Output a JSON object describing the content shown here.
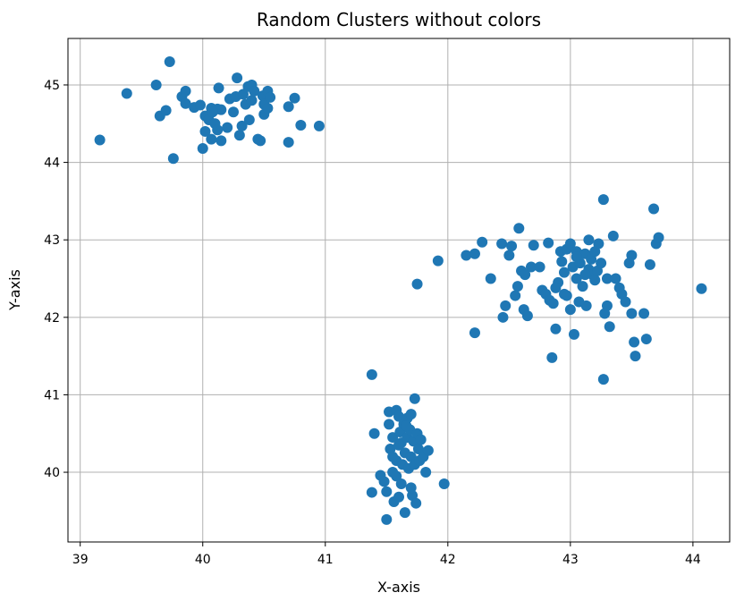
{
  "chart_data": {
    "type": "scatter",
    "title": "Random Clusters without colors",
    "xlabel": "X-axis",
    "ylabel": "Y-axis",
    "xlim": [
      38.9,
      44.3
    ],
    "ylim": [
      39.1,
      45.6
    ],
    "xticks": [
      39,
      40,
      41,
      42,
      43,
      44
    ],
    "yticks": [
      40,
      41,
      42,
      43,
      44,
      45
    ],
    "grid": true,
    "marker_color": "#1f77b4",
    "series": [
      {
        "points": [
          [
            39.16,
            44.29
          ],
          [
            39.38,
            44.89
          ],
          [
            39.62,
            45.0
          ],
          [
            39.65,
            44.6
          ],
          [
            39.7,
            44.67
          ],
          [
            39.73,
            45.3
          ],
          [
            39.76,
            44.05
          ],
          [
            39.83,
            44.85
          ],
          [
            39.86,
            44.92
          ],
          [
            39.86,
            44.76
          ],
          [
            39.93,
            44.71
          ],
          [
            39.98,
            44.74
          ],
          [
            40.02,
            44.6
          ],
          [
            40.02,
            44.4
          ],
          [
            40.0,
            44.18
          ],
          [
            40.05,
            44.55
          ],
          [
            40.07,
            44.7
          ],
          [
            40.07,
            44.3
          ],
          [
            40.1,
            44.5
          ],
          [
            40.12,
            44.69
          ],
          [
            40.13,
            44.96
          ],
          [
            40.15,
            44.68
          ],
          [
            40.15,
            44.28
          ],
          [
            40.2,
            44.45
          ],
          [
            40.22,
            44.82
          ],
          [
            40.27,
            44.85
          ],
          [
            40.28,
            45.09
          ],
          [
            40.3,
            44.35
          ],
          [
            40.32,
            44.47
          ],
          [
            40.33,
            44.88
          ],
          [
            40.35,
            44.75
          ],
          [
            40.37,
            44.98
          ],
          [
            40.4,
            44.8
          ],
          [
            40.4,
            45.0
          ],
          [
            40.42,
            44.92
          ],
          [
            40.45,
            44.3
          ],
          [
            40.47,
            44.28
          ],
          [
            40.49,
            44.86
          ],
          [
            40.5,
            44.62
          ],
          [
            40.5,
            44.75
          ],
          [
            40.53,
            44.92
          ],
          [
            40.55,
            44.84
          ],
          [
            40.53,
            44.7
          ],
          [
            40.7,
            44.72
          ],
          [
            40.7,
            44.26
          ],
          [
            40.75,
            44.83
          ],
          [
            40.8,
            44.48
          ],
          [
            40.95,
            44.47
          ],
          [
            40.08,
            44.65
          ],
          [
            40.12,
            44.42
          ],
          [
            40.25,
            44.65
          ],
          [
            40.38,
            44.55
          ],
          [
            41.38,
            41.26
          ],
          [
            41.4,
            40.5
          ],
          [
            41.38,
            39.74
          ],
          [
            41.45,
            39.96
          ],
          [
            41.48,
            39.88
          ],
          [
            41.5,
            39.39
          ],
          [
            41.5,
            39.75
          ],
          [
            41.52,
            40.62
          ],
          [
            41.52,
            40.78
          ],
          [
            41.53,
            40.3
          ],
          [
            41.55,
            40.0
          ],
          [
            41.55,
            40.45
          ],
          [
            41.56,
            39.62
          ],
          [
            41.58,
            40.8
          ],
          [
            41.58,
            40.15
          ],
          [
            41.6,
            40.72
          ],
          [
            41.6,
            39.68
          ],
          [
            41.61,
            40.52
          ],
          [
            41.62,
            40.38
          ],
          [
            41.62,
            39.85
          ],
          [
            41.63,
            40.1
          ],
          [
            41.64,
            40.62
          ],
          [
            41.65,
            40.25
          ],
          [
            41.65,
            39.48
          ],
          [
            41.67,
            40.7
          ],
          [
            41.67,
            40.45
          ],
          [
            41.68,
            40.05
          ],
          [
            41.69,
            40.55
          ],
          [
            41.7,
            40.75
          ],
          [
            41.7,
            40.2
          ],
          [
            41.71,
            39.7
          ],
          [
            41.72,
            40.4
          ],
          [
            41.73,
            40.95
          ],
          [
            41.73,
            40.1
          ],
          [
            41.74,
            39.6
          ],
          [
            41.75,
            40.5
          ],
          [
            41.76,
            40.3
          ],
          [
            41.77,
            40.15
          ],
          [
            41.78,
            40.42
          ],
          [
            41.8,
            40.2
          ],
          [
            41.82,
            40.0
          ],
          [
            41.84,
            40.28
          ],
          [
            41.97,
            39.85
          ],
          [
            41.55,
            40.2
          ],
          [
            41.6,
            40.35
          ],
          [
            41.66,
            40.6
          ],
          [
            41.58,
            39.95
          ],
          [
            41.7,
            39.8
          ],
          [
            41.75,
            42.43
          ],
          [
            41.92,
            42.73
          ],
          [
            42.15,
            42.8
          ],
          [
            42.22,
            42.82
          ],
          [
            42.22,
            41.8
          ],
          [
            42.28,
            42.97
          ],
          [
            42.35,
            42.5
          ],
          [
            42.44,
            42.95
          ],
          [
            42.45,
            42.0
          ],
          [
            42.47,
            42.15
          ],
          [
            42.5,
            42.8
          ],
          [
            42.52,
            42.92
          ],
          [
            42.55,
            42.28
          ],
          [
            42.57,
            42.4
          ],
          [
            42.58,
            43.15
          ],
          [
            42.6,
            42.6
          ],
          [
            42.62,
            42.1
          ],
          [
            42.63,
            42.55
          ],
          [
            42.65,
            42.02
          ],
          [
            42.68,
            42.65
          ],
          [
            42.7,
            42.93
          ],
          [
            42.75,
            42.65
          ],
          [
            42.77,
            42.35
          ],
          [
            42.8,
            42.3
          ],
          [
            42.82,
            42.96
          ],
          [
            42.83,
            42.22
          ],
          [
            42.85,
            41.48
          ],
          [
            42.86,
            42.18
          ],
          [
            42.88,
            41.85
          ],
          [
            42.9,
            42.45
          ],
          [
            42.92,
            42.85
          ],
          [
            42.93,
            42.72
          ],
          [
            42.95,
            42.3
          ],
          [
            42.95,
            42.58
          ],
          [
            42.97,
            42.88
          ],
          [
            43.0,
            42.95
          ],
          [
            43.02,
            42.65
          ],
          [
            43.03,
            41.78
          ],
          [
            43.05,
            42.5
          ],
          [
            43.05,
            42.85
          ],
          [
            43.07,
            42.2
          ],
          [
            43.08,
            42.7
          ],
          [
            43.1,
            42.4
          ],
          [
            43.12,
            42.82
          ],
          [
            43.13,
            42.15
          ],
          [
            43.15,
            42.62
          ],
          [
            43.15,
            43.0
          ],
          [
            43.17,
            42.75
          ],
          [
            43.18,
            42.55
          ],
          [
            43.2,
            42.85
          ],
          [
            43.22,
            42.6
          ],
          [
            43.23,
            42.95
          ],
          [
            43.25,
            42.7
          ],
          [
            43.27,
            43.52
          ],
          [
            43.27,
            41.2
          ],
          [
            43.28,
            42.05
          ],
          [
            43.3,
            42.5
          ],
          [
            43.3,
            42.15
          ],
          [
            43.32,
            41.88
          ],
          [
            43.35,
            43.05
          ],
          [
            43.37,
            42.5
          ],
          [
            43.4,
            42.38
          ],
          [
            43.42,
            42.3
          ],
          [
            43.45,
            42.2
          ],
          [
            43.48,
            42.7
          ],
          [
            43.5,
            42.8
          ],
          [
            43.5,
            42.05
          ],
          [
            43.52,
            41.68
          ],
          [
            43.53,
            41.5
          ],
          [
            43.6,
            42.05
          ],
          [
            43.62,
            41.72
          ],
          [
            43.65,
            42.68
          ],
          [
            43.68,
            43.4
          ],
          [
            43.7,
            42.95
          ],
          [
            43.72,
            43.03
          ],
          [
            44.07,
            42.37
          ],
          [
            42.97,
            42.28
          ],
          [
            43.05,
            42.78
          ],
          [
            43.12,
            42.55
          ],
          [
            43.2,
            42.48
          ],
          [
            42.88,
            42.38
          ],
          [
            43.0,
            42.1
          ]
        ]
      }
    ]
  }
}
